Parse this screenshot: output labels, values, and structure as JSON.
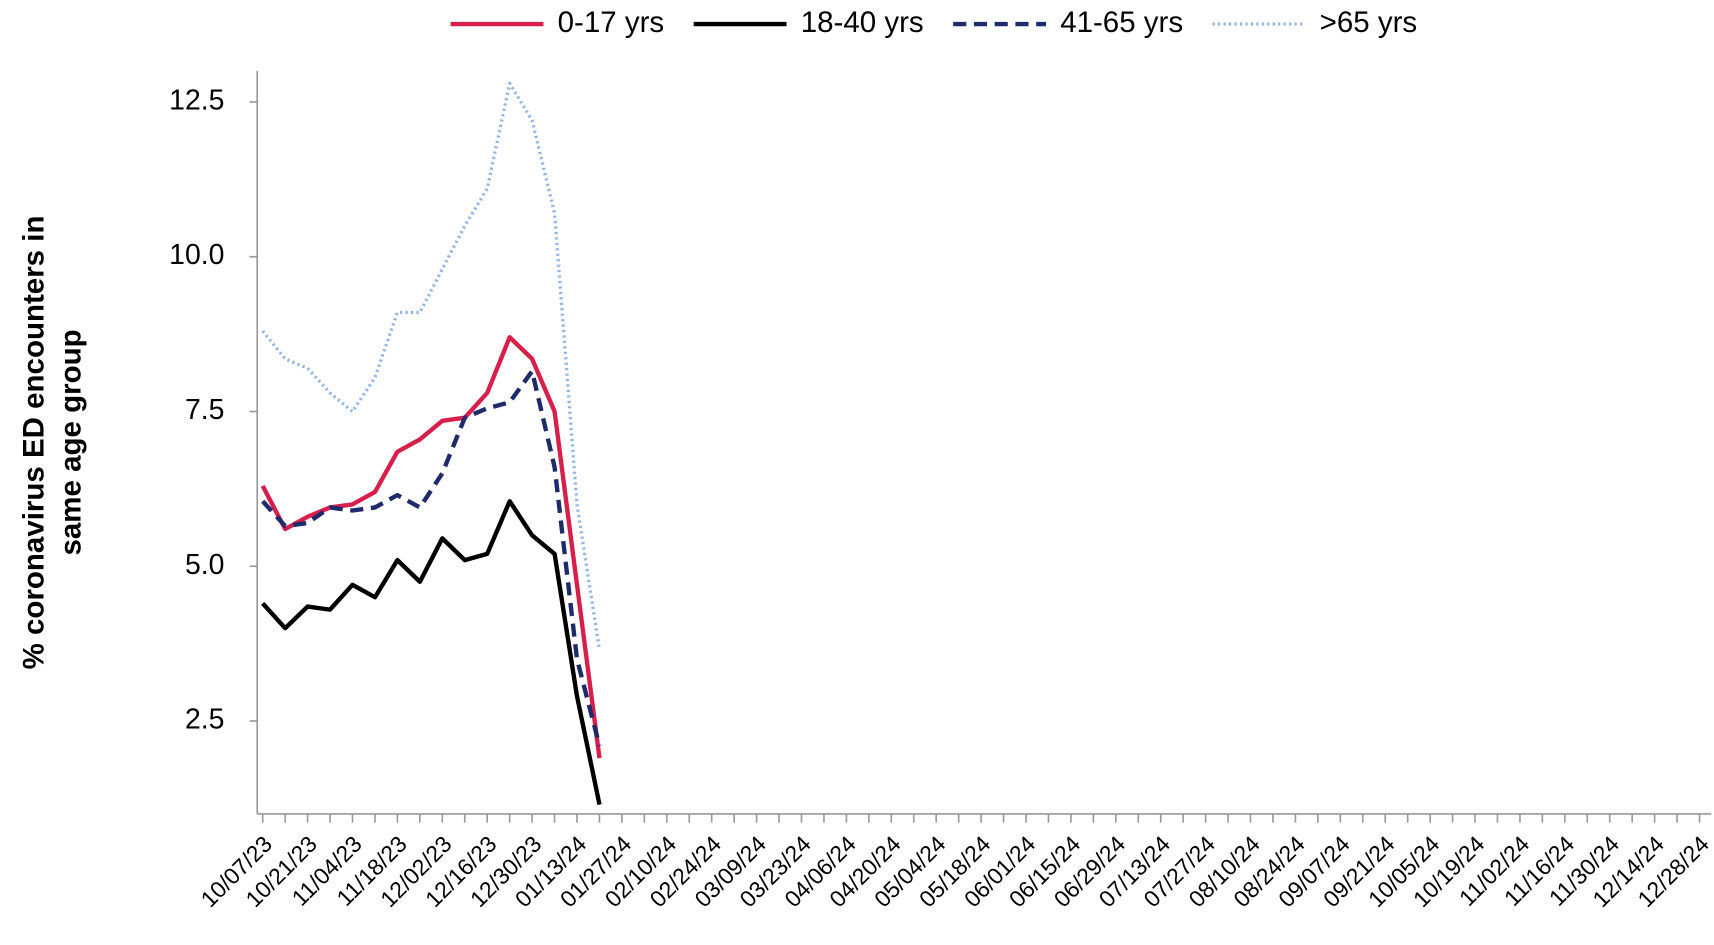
{
  "chart_data": {
    "type": "line",
    "ylabel": [
      "% coronavirus ED encounters in",
      "same age group"
    ],
    "categories": [
      "10/07/23",
      null,
      "10/21/23",
      null,
      "11/04/23",
      null,
      "11/18/23",
      null,
      "12/02/23",
      null,
      "12/16/23",
      null,
      "12/30/23",
      null,
      "01/13/24",
      null,
      "01/27/24",
      null,
      "02/10/24",
      null,
      "02/24/24",
      null,
      "03/09/24",
      null,
      "03/23/24",
      null,
      "04/06/24",
      null,
      "04/20/24",
      null,
      "05/04/24",
      null,
      "05/18/24",
      null,
      "06/01/24",
      null,
      "06/15/24",
      null,
      "06/29/24",
      null,
      "07/13/24",
      null,
      "07/27/24",
      null,
      "08/10/24",
      null,
      "08/24/24",
      null,
      "09/07/24",
      null,
      "09/21/24",
      null,
      "10/05/24",
      null,
      "10/19/24",
      null,
      "11/02/24",
      null,
      "11/16/24",
      null,
      "11/30/24",
      null,
      "12/14/24",
      null,
      "12/28/24"
    ],
    "series": [
      {
        "name": "0-17 yrs",
        "color": "#d6204b",
        "dash": "solid",
        "values": [
          6.3,
          5.6,
          5.8,
          5.95,
          6.0,
          6.2,
          6.85,
          7.05,
          7.35,
          7.4,
          7.8,
          8.7,
          8.35,
          7.5,
          4.7,
          1.9,
          null,
          null,
          null,
          null,
          null,
          null,
          null,
          null,
          null,
          null,
          null,
          null,
          null,
          null,
          null,
          null,
          null,
          null,
          null,
          null,
          null,
          null,
          null,
          null,
          null,
          null,
          null,
          null,
          null,
          null,
          null,
          null,
          null,
          null,
          null,
          null,
          null,
          null,
          null,
          null,
          null,
          null,
          null,
          null,
          null,
          null,
          null,
          null,
          null
        ]
      },
      {
        "name": "18-40 yrs",
        "color": "#000000",
        "dash": "solid",
        "values": [
          4.4,
          4.0,
          4.35,
          4.3,
          4.7,
          4.5,
          5.1,
          4.75,
          5.45,
          5.1,
          5.2,
          6.05,
          5.5,
          5.2,
          2.9,
          1.15,
          null,
          null,
          null,
          null,
          null,
          null,
          null,
          null,
          null,
          null,
          null,
          null,
          null,
          null,
          null,
          null,
          null,
          null,
          null,
          null,
          null,
          null,
          null,
          null,
          null,
          null,
          null,
          null,
          null,
          null,
          null,
          null,
          null,
          null,
          null,
          null,
          null,
          null,
          null,
          null,
          null,
          null,
          null,
          null,
          null,
          null,
          null,
          null,
          null
        ]
      },
      {
        "name": "41-65 yrs",
        "color": "#1f2a6b",
        "dash": "dashed",
        "values": [
          6.05,
          5.65,
          5.7,
          5.95,
          5.9,
          5.95,
          6.15,
          5.95,
          6.5,
          7.4,
          7.55,
          7.65,
          8.15,
          6.6,
          3.5,
          2.1,
          null,
          null,
          null,
          null,
          null,
          null,
          null,
          null,
          null,
          null,
          null,
          null,
          null,
          null,
          null,
          null,
          null,
          null,
          null,
          null,
          null,
          null,
          null,
          null,
          null,
          null,
          null,
          null,
          null,
          null,
          null,
          null,
          null,
          null,
          null,
          null,
          null,
          null,
          null,
          null,
          null,
          null,
          null,
          null,
          null,
          null,
          null,
          null,
          null
        ]
      },
      {
        "name": ">65 yrs",
        "color": "#8fb4e8",
        "dash": "dotted",
        "values": [
          8.8,
          8.35,
          8.2,
          7.8,
          7.5,
          8.05,
          9.1,
          9.1,
          9.8,
          10.5,
          11.1,
          12.8,
          12.2,
          10.7,
          6.0,
          3.65,
          null,
          null,
          null,
          null,
          null,
          null,
          null,
          null,
          null,
          null,
          null,
          null,
          null,
          null,
          null,
          null,
          null,
          null,
          null,
          null,
          null,
          null,
          null,
          null,
          null,
          null,
          null,
          null,
          null,
          null,
          null,
          null,
          null,
          null,
          null,
          null,
          null,
          null,
          null,
          null,
          null,
          null,
          null,
          null,
          null,
          null,
          null,
          null,
          null
        ]
      }
    ],
    "ylim": [
      1.0,
      13.0
    ],
    "yticks": [
      2.5,
      {
        "value": 5.0,
        "label": "5.0"
      },
      7.5,
      {
        "value": 10.0,
        "label": "10.0"
      },
      12.5
    ],
    "grid": false
  }
}
